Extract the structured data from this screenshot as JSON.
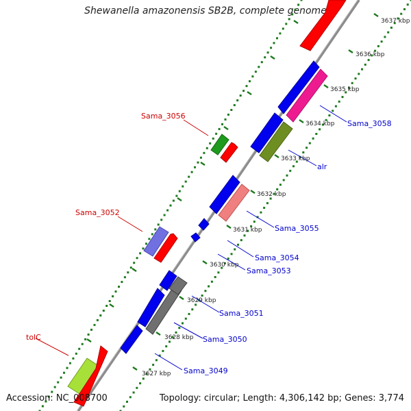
{
  "title": "Shewanella amazonensis SB2B, complete genome",
  "footer": {
    "accession": "Accession: NC_008700",
    "summary": "Topology: circular; Length: 4,306,142 bp; Genes: 3,774"
  },
  "ticks": [
    "3627 kbp",
    "3628 kbp",
    "3629 kbp",
    "3630 kbp",
    "3631 kbp",
    "3632 kbp",
    "3633 kbp",
    "3634 kbp",
    "3635 kbp",
    "3636 kbp",
    "3637 kbp"
  ],
  "labels": {
    "tolC": "tolC",
    "Sama_3052": "Sama_3052",
    "Sama_3056": "Sama_3056",
    "Sama_3049": "Sama_3049",
    "Sama_3050": "Sama_3050",
    "Sama_3051": "Sama_3051",
    "Sama_3053": "Sama_3053",
    "Sama_3054": "Sama_3054",
    "Sama_3055": "Sama_3055",
    "alr": "alr",
    "Sama_3058": "Sama_3058"
  },
  "colors": {
    "backbone": "#8c8c8c",
    "ticks": "#1e7a1e",
    "label_left": "#cc0000",
    "label_right": "#0000cc"
  }
}
